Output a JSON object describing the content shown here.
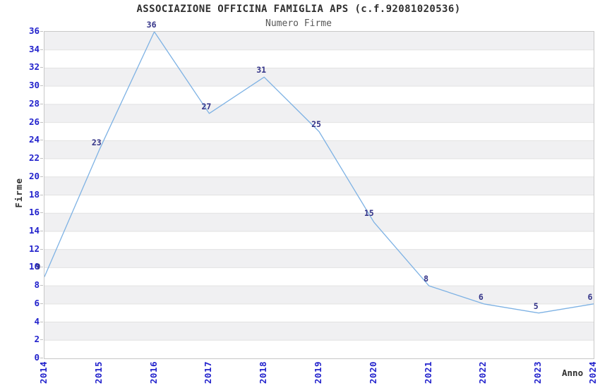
{
  "page": {
    "background": "#ffffff"
  },
  "chart_data": {
    "type": "line",
    "title": "ASSOCIAZIONE OFFICINA FAMIGLIA APS (c.f.92081020536)",
    "subtitle": "Numero Firme",
    "xlabel": "Anno",
    "ylabel": "Firme",
    "categories": [
      "2014",
      "2015",
      "2016",
      "2017",
      "2018",
      "2019",
      "2020",
      "2021",
      "2022",
      "2023",
      "2024"
    ],
    "values": [
      9,
      23,
      36,
      27,
      31,
      25,
      15,
      8,
      6,
      5,
      6
    ],
    "ylim": [
      0,
      36
    ],
    "ytick_step": 2,
    "grid": "horizontal-alternating-bands",
    "legend": "none",
    "colors": {
      "line": "#7EB2E4",
      "tick_labels": "#2222CC",
      "data_labels": "#333388",
      "band": "#F0F0F2",
      "gridline": "#E2E2E2",
      "plot_border": "#C8C8C8",
      "title": "#303030",
      "subtitle": "#575757",
      "axis_titles": "#303030"
    }
  }
}
